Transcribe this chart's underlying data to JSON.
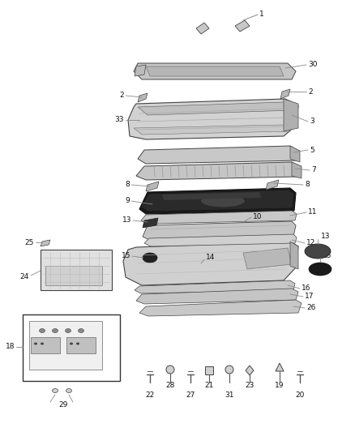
{
  "bg_color": "#ffffff",
  "fig_width": 4.38,
  "fig_height": 5.33,
  "dpi": 100,
  "line_color": "#888888",
  "part_color": "#d0d0d0",
  "dark_color": "#222222",
  "edge_color": "#555555"
}
